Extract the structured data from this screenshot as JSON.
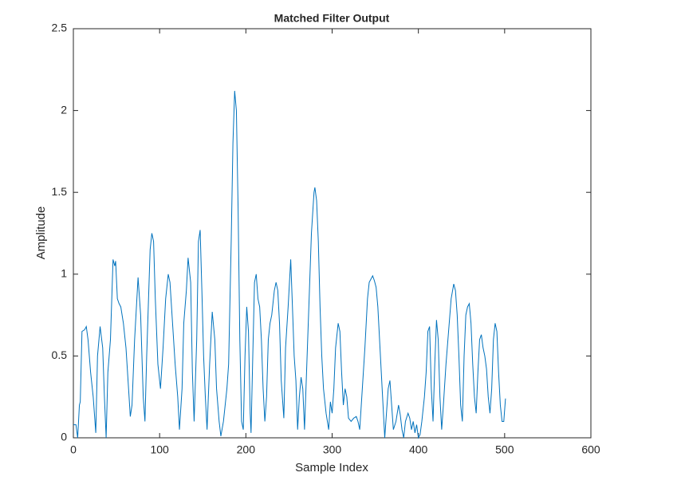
{
  "chart_data": {
    "type": "line",
    "title": "Matched Filter Output",
    "x_label": "Sample Index",
    "y_label": "Amplitude",
    "xlim": [
      0,
      600
    ],
    "xticks": [
      0,
      100,
      200,
      300,
      400,
      500,
      600
    ],
    "ylim": [
      0,
      2.5
    ],
    "yticks": [
      0,
      0.5,
      1,
      1.5,
      2,
      2.5
    ],
    "series": [
      {
        "color": "#0072bd",
        "x": [
          0,
          3,
          5,
          7,
          8,
          10,
          13,
          15,
          17,
          20,
          23,
          26,
          28,
          31,
          34,
          36,
          38,
          40,
          43,
          46,
          48,
          49,
          51,
          53,
          55,
          58,
          61,
          64,
          66,
          68,
          71,
          75,
          78,
          81,
          83,
          85,
          89,
          91,
          93,
          95,
          98,
          101,
          104,
          107,
          110,
          112,
          115,
          118,
          121,
          123,
          126,
          128,
          131,
          133,
          136,
          138,
          140,
          143,
          145,
          147,
          149,
          151,
          153,
          155,
          158,
          161,
          164,
          166,
          169,
          171,
          174,
          178,
          180,
          183,
          185,
          187,
          189,
          191,
          193,
          195,
          197,
          199,
          201,
          203,
          205,
          206,
          208,
          210,
          212,
          214,
          216,
          218,
          220,
          222,
          224,
          226,
          228,
          230,
          233,
          235,
          237,
          239,
          241,
          244,
          246,
          249,
          252,
          254,
          256,
          258,
          260,
          262,
          264,
          266,
          268,
          270,
          273,
          276,
          279,
          280,
          282,
          284,
          286,
          288,
          290,
          293,
          296,
          298,
          300,
          302,
          304,
          307,
          309,
          311,
          313,
          315,
          317,
          319,
          322,
          325,
          328,
          330,
          332,
          335,
          338,
          341,
          343,
          345,
          347,
          349,
          351,
          353,
          355,
          357,
          359,
          361,
          363,
          365,
          367,
          369,
          371,
          374,
          377,
          379,
          381,
          383,
          385,
          388,
          390,
          392,
          394,
          396,
          398,
          400,
          402,
          404,
          407,
          409,
          411,
          413,
          415,
          417,
          419,
          421,
          423,
          425,
          427,
          429,
          432,
          435,
          438,
          441,
          443,
          445,
          447,
          449,
          451,
          453,
          455,
          457,
          459,
          461,
          463,
          465,
          467,
          469,
          471,
          473,
          475,
          477,
          479,
          481,
          483,
          485,
          487,
          489,
          491,
          493,
          495,
          497,
          499,
          501
        ],
        "values": [
          0.08,
          0.08,
          0.0,
          0.2,
          0.22,
          0.65,
          0.66,
          0.68,
          0.6,
          0.4,
          0.25,
          0.03,
          0.5,
          0.68,
          0.55,
          0.25,
          0.0,
          0.4,
          0.6,
          1.09,
          1.05,
          1.08,
          0.85,
          0.82,
          0.8,
          0.7,
          0.55,
          0.3,
          0.13,
          0.2,
          0.6,
          0.98,
          0.75,
          0.25,
          0.1,
          0.5,
          1.15,
          1.25,
          1.2,
          0.85,
          0.45,
          0.3,
          0.55,
          0.85,
          1.0,
          0.95,
          0.7,
          0.45,
          0.25,
          0.05,
          0.3,
          0.7,
          0.9,
          1.1,
          0.95,
          0.4,
          0.1,
          0.6,
          1.2,
          1.27,
          0.9,
          0.5,
          0.25,
          0.05,
          0.45,
          0.77,
          0.6,
          0.3,
          0.1,
          0.01,
          0.1,
          0.3,
          0.45,
          1.2,
          1.8,
          2.12,
          2.0,
          1.4,
          0.6,
          0.1,
          0.05,
          0.5,
          0.8,
          0.65,
          0.15,
          0.03,
          0.5,
          0.95,
          1.0,
          0.85,
          0.8,
          0.6,
          0.3,
          0.1,
          0.25,
          0.6,
          0.7,
          0.75,
          0.9,
          0.95,
          0.9,
          0.7,
          0.35,
          0.12,
          0.55,
          0.8,
          1.09,
          0.8,
          0.5,
          0.35,
          0.05,
          0.25,
          0.37,
          0.3,
          0.05,
          0.35,
          0.8,
          1.25,
          1.5,
          1.53,
          1.45,
          1.2,
          0.8,
          0.5,
          0.3,
          0.15,
          0.05,
          0.22,
          0.15,
          0.3,
          0.55,
          0.7,
          0.65,
          0.4,
          0.2,
          0.3,
          0.25,
          0.12,
          0.1,
          0.12,
          0.13,
          0.1,
          0.05,
          0.3,
          0.55,
          0.85,
          0.95,
          0.97,
          0.99,
          0.96,
          0.92,
          0.8,
          0.6,
          0.4,
          0.2,
          0.0,
          0.15,
          0.3,
          0.35,
          0.2,
          0.05,
          0.1,
          0.2,
          0.14,
          0.05,
          0.0,
          0.1,
          0.15,
          0.12,
          0.05,
          0.1,
          0.03,
          0.08,
          0.0,
          0.02,
          0.1,
          0.25,
          0.4,
          0.65,
          0.68,
          0.3,
          0.1,
          0.45,
          0.72,
          0.6,
          0.25,
          0.05,
          0.2,
          0.45,
          0.65,
          0.85,
          0.94,
          0.9,
          0.75,
          0.5,
          0.2,
          0.1,
          0.5,
          0.75,
          0.8,
          0.82,
          0.7,
          0.45,
          0.25,
          0.15,
          0.4,
          0.6,
          0.63,
          0.55,
          0.5,
          0.42,
          0.25,
          0.15,
          0.3,
          0.6,
          0.7,
          0.65,
          0.4,
          0.2,
          0.1,
          0.1,
          0.24
        ]
      }
    ]
  }
}
